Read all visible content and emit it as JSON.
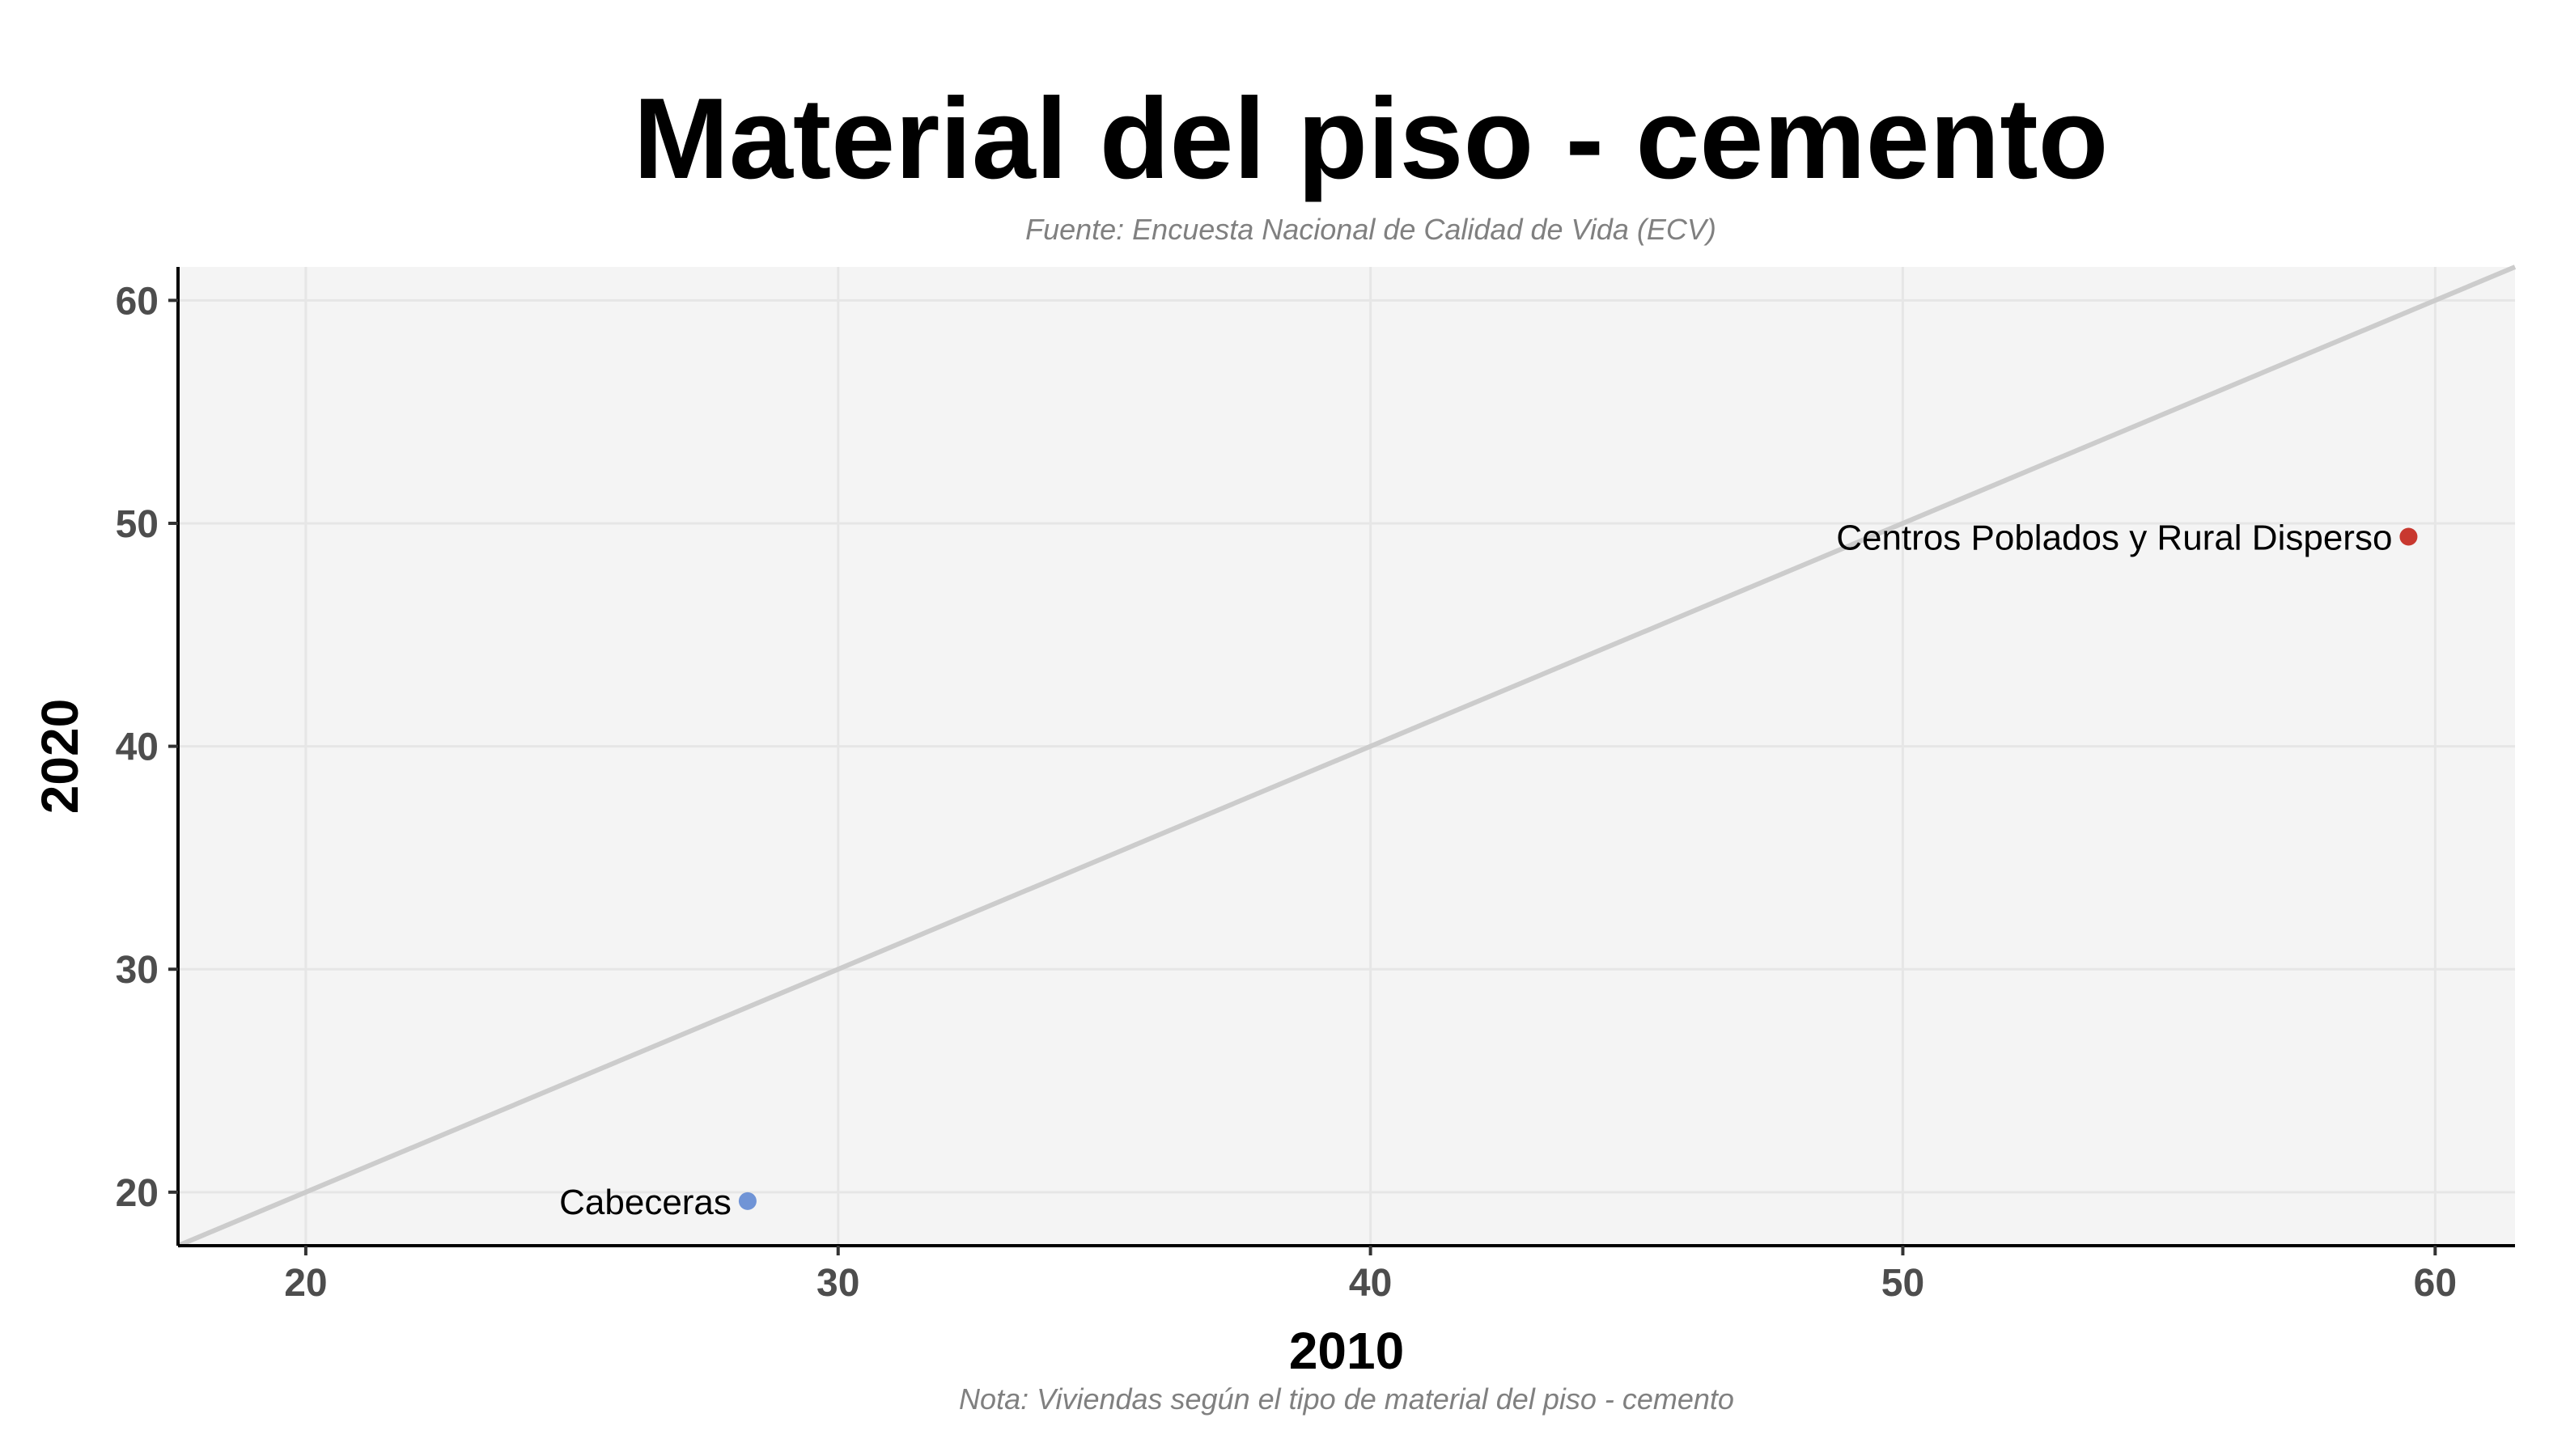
{
  "chart_data": {
    "type": "scatter",
    "title": "Material del piso - cemento",
    "subtitle": "Fuente: Encuesta Nacional de Calidad de Vida (ECV)",
    "caption": "Nota: Viviendas según el tipo de material del piso - cemento",
    "xlabel": "2010",
    "ylabel": "2020",
    "xlim": [
      17.6,
      61.5
    ],
    "ylim": [
      17.6,
      61.5
    ],
    "xticks": [
      20,
      30,
      40,
      50,
      60
    ],
    "yticks": [
      20,
      30,
      40,
      50,
      60
    ],
    "grid": true,
    "reference_line": "y = x",
    "points": [
      {
        "label": "Cabeceras",
        "x": 28.3,
        "y": 19.6,
        "color": "#7094d6"
      },
      {
        "label": "Centros Poblados y Rural Disperso",
        "x": 59.5,
        "y": 49.4,
        "color": "#c8382f"
      }
    ],
    "colors": {
      "panel": "#f4f4f4",
      "grid": "#e6e6e6",
      "reference_line": "#cccccc",
      "axis": "#000000"
    }
  }
}
